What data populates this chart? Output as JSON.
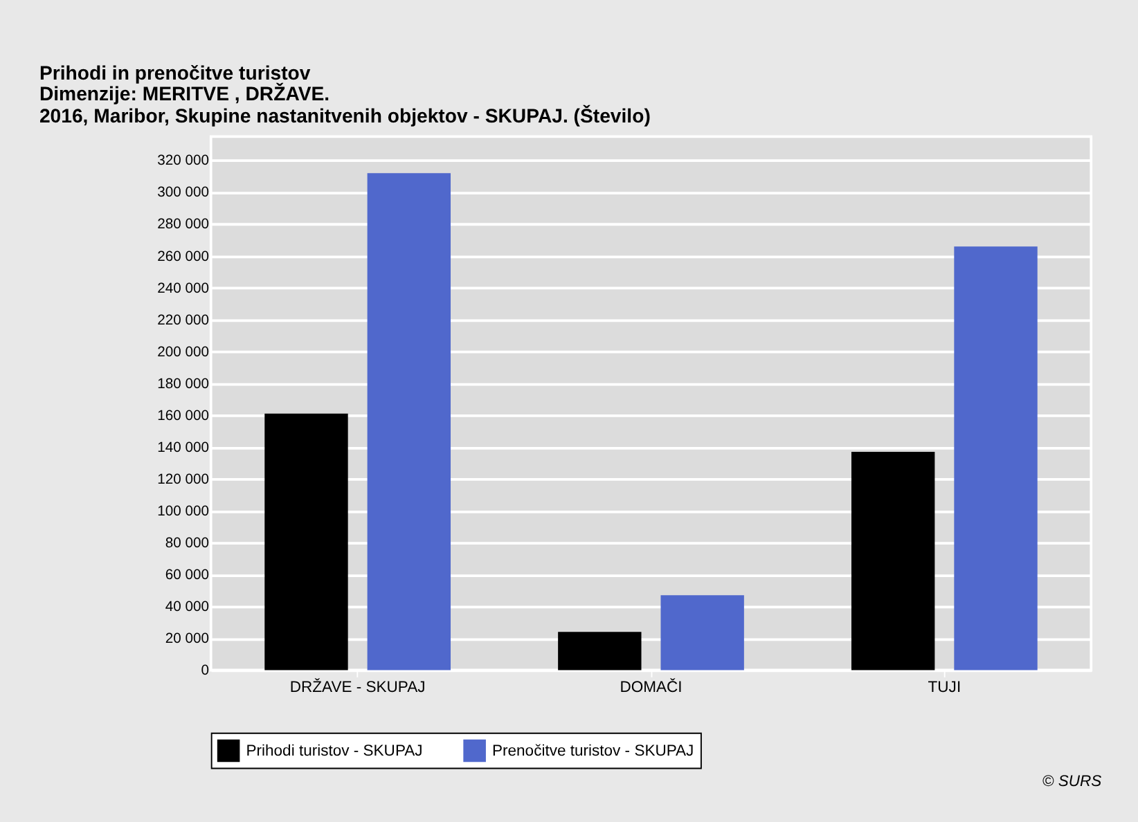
{
  "chart_data": {
    "type": "bar",
    "title": "Prihodi in prenočitve turistov",
    "subtitle": "Dimenzije: MERITVE , DRŽAVE.\n2016, Maribor, Skupine nastanitvenih objektov - SKUPAJ. (Število)",
    "categories": [
      "DRŽAVE - SKUPAJ",
      "DOMAČI",
      "TUJI"
    ],
    "series": [
      {
        "name": "Prihodi turistov - SKUPAJ",
        "color": "#000000",
        "values": [
          161000,
          24000,
          137000
        ]
      },
      {
        "name": "Prenočitve turistov - SKUPAJ",
        "color": "#5068cc",
        "values": [
          312000,
          47000,
          266000
        ]
      }
    ],
    "ylim": [
      0,
      335000
    ],
    "yticks": [
      {
        "value": 0,
        "label": "0"
      },
      {
        "value": 20000,
        "label": "20 000"
      },
      {
        "value": 40000,
        "label": "40 000"
      },
      {
        "value": 60000,
        "label": "60 000"
      },
      {
        "value": 80000,
        "label": "80 000"
      },
      {
        "value": 100000,
        "label": "100 000"
      },
      {
        "value": 120000,
        "label": "120 000"
      },
      {
        "value": 140000,
        "label": "140 000"
      },
      {
        "value": 160000,
        "label": "160 000"
      },
      {
        "value": 180000,
        "label": "180 000"
      },
      {
        "value": 200000,
        "label": "200 000"
      },
      {
        "value": 220000,
        "label": "220 000"
      },
      {
        "value": 240000,
        "label": "240 000"
      },
      {
        "value": 260000,
        "label": "260 000"
      },
      {
        "value": 280000,
        "label": "280 000"
      },
      {
        "value": 300000,
        "label": "300 000"
      },
      {
        "value": 320000,
        "label": "320 000"
      }
    ],
    "grid": "y",
    "legend": "bottom",
    "annotations": [
      "© SURS"
    ]
  }
}
